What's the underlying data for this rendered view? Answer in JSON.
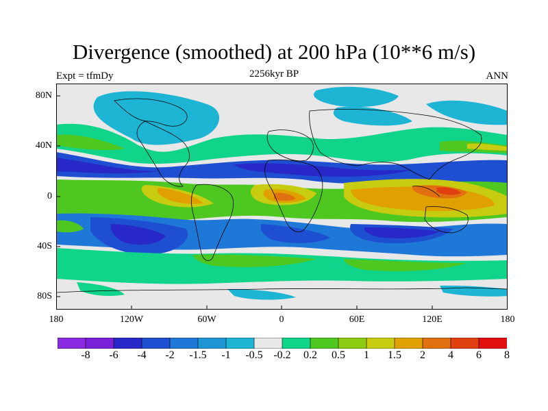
{
  "title": "Divergence (smoothed) at 200 hPa (10**6 m/s)",
  "subtitle_left": "Expt = tfmDy",
  "subtitle_center": "2256kyr BP",
  "subtitle_right": "ANN",
  "lat_labels": [
    "80N",
    "40N",
    "0",
    "40S",
    "80S"
  ],
  "lon_labels": [
    "180",
    "120W",
    "60W",
    "0",
    "60E",
    "120E",
    "180"
  ],
  "colorbar": {
    "colors": [
      "#8a2be2",
      "#7a22d9",
      "#2828c8",
      "#1d4fd0",
      "#1e78d8",
      "#1e96d6",
      "#1eb4d4",
      "#e8e8e8",
      "#10d48a",
      "#4ec820",
      "#8ecc14",
      "#c8cc10",
      "#e0a000",
      "#e07010",
      "#e04010",
      "#e01010"
    ],
    "labels": [
      "-8",
      "-6",
      "-4",
      "-2",
      "-1.5",
      "-1",
      "-0.5",
      "-0.2",
      "0.2",
      "0.5",
      "1",
      "1.5",
      "2",
      "4",
      "6",
      "8"
    ]
  },
  "legend_colors": {
    "neutral": "#e8e8e8",
    "strong_neg": "#2828c8",
    "mid_neg": "#1e78d8",
    "weak_neg": "#1eb4d4",
    "weak_pos": "#10d48a",
    "mid_pos": "#4ec820",
    "pos2": "#c8cc10",
    "pos3": "#e0a000",
    "pos4": "#e07010"
  }
}
